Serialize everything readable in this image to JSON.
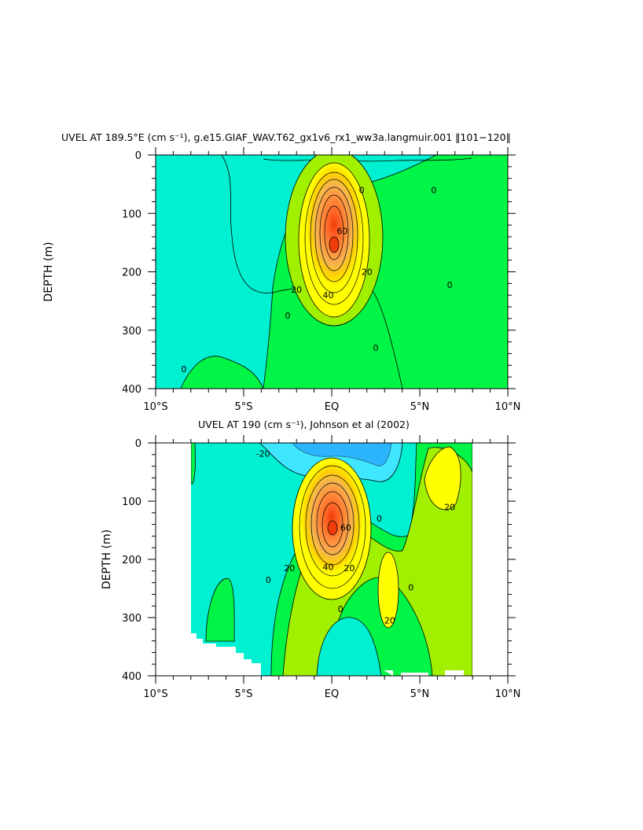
{
  "chart_data": [
    {
      "type": "contour",
      "title": "UVEL AT 189.5°E (cm s⁻¹), g.e15.GIAF_WAV.T62_gx1v6_rx1_ww3a.langmuir.001 ‖101−120‖",
      "ylabel": "DEPTH (m)",
      "xlabel": "",
      "xlim": [
        -10,
        10
      ],
      "ylim": [
        400,
        0
      ],
      "x_tick_labels": [
        "10°S",
        "5°S",
        "EQ",
        "5°N",
        "10°N"
      ],
      "y_tick_labels": [
        "0",
        "100",
        "200",
        "300",
        "400"
      ],
      "contour_interval": 10,
      "color_levels": [
        {
          "range": "< -20",
          "color": "#1e8cff"
        },
        {
          "range": "-20 to -10",
          "color": "#3fe6ff"
        },
        {
          "range": "-10 to 0",
          "color": "#00f0d2"
        },
        {
          "range": "0 to 10",
          "color": "#00f546"
        },
        {
          "range": "10 to 20",
          "color": "#a0f000"
        },
        {
          "range": "20 to 30",
          "color": "#ffff00"
        },
        {
          "range": "30 to 40",
          "color": "#ffd200"
        },
        {
          "range": "40 to 50",
          "color": "#f5b450"
        },
        {
          "range": "50 to 60",
          "color": "#ff9640"
        },
        {
          "range": "60 to 70",
          "color": "#ff7830"
        },
        {
          "range": "70 to 80",
          "color": "#ff5a20"
        },
        {
          "range": "> 80",
          "color": "#f03c0a"
        }
      ],
      "core": {
        "lon": 0.0,
        "depth": 160,
        "max_speed": 85
      },
      "contour_labels": [
        {
          "text": "0",
          "lon": 2.5,
          "depth": 330
        },
        {
          "text": "0",
          "lon": -2.5,
          "depth": 275
        },
        {
          "text": "0",
          "lon": -8.4,
          "depth": 366
        },
        {
          "text": "0",
          "lon": 1.7,
          "depth": 60
        },
        {
          "text": "0",
          "lon": 5.8,
          "depth": 60
        },
        {
          "text": "0",
          "lon": 6.7,
          "depth": 222
        },
        {
          "text": "20",
          "lon": -2.0,
          "depth": 230
        },
        {
          "text": "20",
          "lon": 2.0,
          "depth": 200
        },
        {
          "text": "40",
          "lon": -0.2,
          "depth": 240
        },
        {
          "text": "60",
          "lon": 0.6,
          "depth": 130
        }
      ]
    },
    {
      "type": "contour",
      "title": "UVEL AT 190 (cm s⁻¹), Johnson et al (2002)",
      "ylabel": "DEPTH (m)",
      "xlabel": "",
      "xlim": [
        -10,
        10
      ],
      "ylim": [
        400,
        0
      ],
      "x_tick_labels": [
        "10°S",
        "5°S",
        "EQ",
        "5°N",
        "10°N"
      ],
      "y_tick_labels": [
        "0",
        "100",
        "200",
        "300",
        "400"
      ],
      "data_extent_lon": [
        -8,
        8
      ],
      "contour_interval": 10,
      "core": {
        "lon": 0.0,
        "depth": 150,
        "max_speed": 90
      },
      "contour_labels": [
        {
          "text": "-20",
          "lon": -3.9,
          "depth": 18
        },
        {
          "text": "0",
          "lon": 2.7,
          "depth": 130
        },
        {
          "text": "0",
          "lon": -3.6,
          "depth": 235
        },
        {
          "text": "0",
          "lon": 4.5,
          "depth": 248
        },
        {
          "text": "0",
          "lon": 0.5,
          "depth": 285
        },
        {
          "text": "20",
          "lon": -2.4,
          "depth": 215
        },
        {
          "text": "20",
          "lon": 1.0,
          "depth": 215
        },
        {
          "text": "20",
          "lon": 3.3,
          "depth": 305
        },
        {
          "text": "20",
          "lon": 6.7,
          "depth": 110
        },
        {
          "text": "40",
          "lon": -0.2,
          "depth": 213
        },
        {
          "text": "60",
          "lon": 0.8,
          "depth": 145
        }
      ]
    }
  ]
}
